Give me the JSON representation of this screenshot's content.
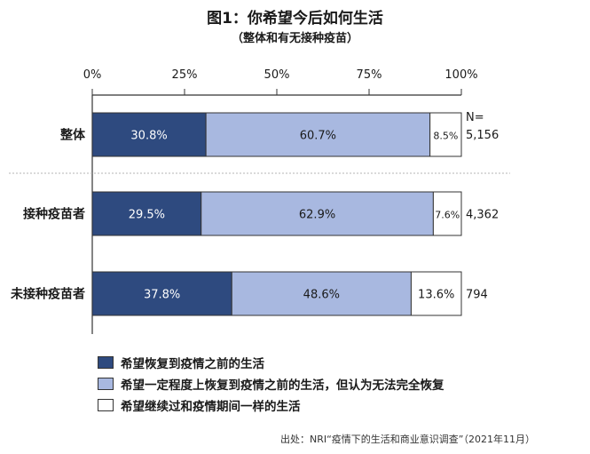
{
  "title": "图1：你希望今后如何生活",
  "subtitle": "（整体和有无接种疫苗）",
  "source": "出处：NRI“疫情下的生活和商业意识调查”（2021年11月）",
  "n_header": "N=",
  "colors": {
    "series1": "#2e4a7f",
    "series2": "#a8b8e0",
    "series3": "#ffffff"
  },
  "chart_data": {
    "type": "bar",
    "orientation": "horizontal",
    "stacked": true,
    "percent_stacked": true,
    "x_ticks": [
      "0%",
      "25%",
      "50%",
      "75%",
      "100%"
    ],
    "xlim": [
      0,
      100
    ],
    "categories": [
      "整体",
      "接种疫苗者",
      "未接种疫苗者"
    ],
    "n_values": [
      "5,156",
      "4,362",
      "794"
    ],
    "value_labels": [
      [
        "30.8%",
        "60.7%",
        "8.5%"
      ],
      [
        "29.5%",
        "62.9%",
        "7.6%"
      ],
      [
        "37.8%",
        "48.6%",
        "13.6%"
      ]
    ],
    "series": [
      {
        "name": "希望恢复到疫情之前的生活",
        "values": [
          30.8,
          29.5,
          37.8
        ]
      },
      {
        "name": "希望一定程度上恢复到疫情之前的生活，但认为无法完全恢复",
        "values": [
          60.7,
          62.9,
          48.6
        ]
      },
      {
        "name": "希望继续过和疫情期间一样的生活",
        "values": [
          8.5,
          7.6,
          13.6
        ]
      }
    ],
    "legend_position": "bottom-left"
  }
}
